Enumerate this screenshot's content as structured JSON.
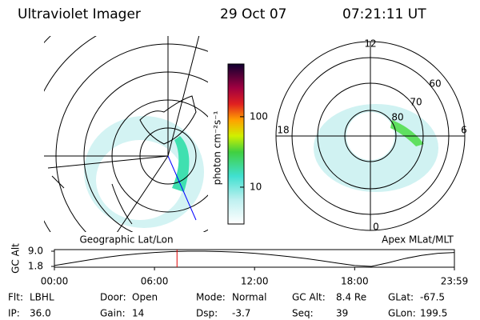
{
  "header": {
    "instrument": "Ultraviolet Imager",
    "date": "29 Oct 07",
    "time": "07:21:11 UT"
  },
  "colorbar": {
    "label": "photon cm⁻²s⁻¹",
    "scale": "log",
    "range": [
      3,
      560
    ],
    "ticks": [
      10,
      100
    ]
  },
  "left_map": {
    "caption": "Geographic Lat/Lon"
  },
  "right_map": {
    "caption": "Apex MLat/MLT",
    "mlt_labels": [
      "12",
      "18",
      "6",
      "0"
    ],
    "lat_labels": [
      "60",
      "70",
      "80"
    ]
  },
  "timeline": {
    "y_label": "GC Alt",
    "ylim": [
      1.8,
      9.0
    ],
    "yticks": [
      {
        "value": 9.0,
        "label": "9.0"
      },
      {
        "value": 1.8,
        "label": "1.8"
      }
    ],
    "xlim": [
      0,
      23.98
    ],
    "xticks": [
      {
        "value": 0,
        "label": "00:00"
      },
      {
        "value": 6,
        "label": "06:00"
      },
      {
        "value": 12,
        "label": "12:00"
      },
      {
        "value": 18,
        "label": "18:00"
      },
      {
        "value": 23.98,
        "label": "23:59"
      }
    ],
    "marker": 7.35,
    "hours": [
      0,
      1,
      2,
      3,
      4,
      5,
      6,
      7,
      8,
      9,
      10,
      11,
      12,
      13,
      14,
      15,
      16,
      17,
      18,
      19,
      20,
      21,
      22,
      23,
      24
    ],
    "altitude": [
      2.2,
      3.5,
      4.8,
      6.0,
      7.0,
      7.8,
      8.4,
      8.8,
      9.0,
      9.0,
      8.8,
      8.5,
      8.0,
      7.3,
      6.5,
      5.6,
      4.5,
      3.3,
      2.2,
      1.8,
      3.5,
      5.5,
      7.0,
      8.0,
      8.4
    ]
  },
  "info": [
    [
      [
        "Flt:",
        "LBHL"
      ],
      [
        "Door:",
        "Open"
      ],
      [
        "Mode:",
        "Normal"
      ],
      [
        "GC Alt:",
        "8.4 Re"
      ],
      [
        "GLat:",
        "-67.5"
      ]
    ],
    [
      [
        "IP:",
        "36.0"
      ],
      [
        "Gain:",
        "14"
      ],
      [
        "Dsp:",
        "-3.7"
      ],
      [
        "Seq:",
        "39"
      ],
      [
        "GLon:",
        "199.5"
      ]
    ]
  ]
}
